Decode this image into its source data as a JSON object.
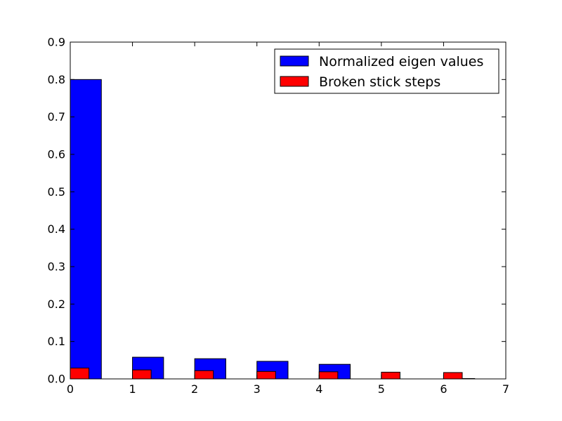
{
  "chart_data": {
    "type": "bar",
    "title": "",
    "xlabel": "",
    "ylabel": "",
    "xlim": [
      0,
      7
    ],
    "ylim": [
      0,
      0.9
    ],
    "xticks": [
      "0",
      "1",
      "2",
      "3",
      "4",
      "5",
      "6",
      "7"
    ],
    "yticks": [
      "0.0",
      "0.1",
      "0.2",
      "0.3",
      "0.4",
      "0.5",
      "0.6",
      "0.7",
      "0.8",
      "0.9"
    ],
    "grid": false,
    "legend_position": "top-right",
    "series": [
      {
        "name": "Normalized eigen values",
        "color": "#0000ff",
        "x": [
          0,
          1,
          2,
          3,
          4,
          5,
          6
        ],
        "values": [
          0.8,
          0.058,
          0.054,
          0.047,
          0.039,
          0.0,
          0.001
        ],
        "width": 0.5
      },
      {
        "name": "Broken stick steps",
        "color": "#ff0000",
        "x": [
          0,
          1,
          2,
          3,
          4,
          5,
          6
        ],
        "values": [
          0.029,
          0.024,
          0.022,
          0.02,
          0.019,
          0.018,
          0.017
        ],
        "width": 0.3
      }
    ]
  }
}
